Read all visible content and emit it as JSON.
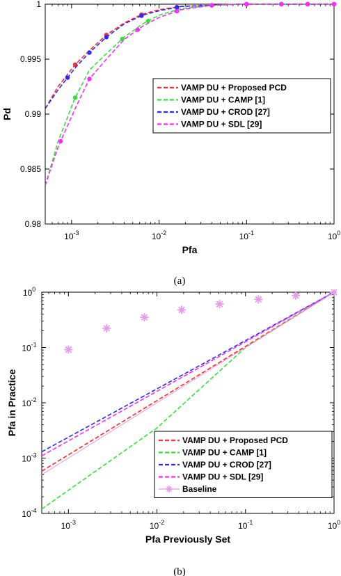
{
  "chart_data": [
    {
      "type": "line",
      "panel_caption": "(a)",
      "xlabel": "Pfa",
      "ylabel": "Pd",
      "xscale": "log",
      "xlim": [
        0.0005,
        1
      ],
      "ylim": [
        0.98,
        1
      ],
      "xticks": [
        {
          "v": 0.001,
          "base": "10",
          "exp": "-3"
        },
        {
          "v": 0.01,
          "base": "10",
          "exp": "-2"
        },
        {
          "v": 0.1,
          "base": "10",
          "exp": "-1"
        },
        {
          "v": 1,
          "base": "10",
          "exp": "0"
        }
      ],
      "yticks": [
        {
          "v": 0.98,
          "label": "0.98"
        },
        {
          "v": 0.985,
          "label": "0.985"
        },
        {
          "v": 0.99,
          "label": "0.99"
        },
        {
          "v": 0.995,
          "label": "0.995"
        },
        {
          "v": 1,
          "label": "1"
        }
      ],
      "legend_position": "right-middle",
      "series": [
        {
          "name": "VAMP DU + Proposed PCD",
          "color": "#ff2a2a",
          "x": [
            0.0005,
            0.0007,
            0.0011,
            0.0016,
            0.0025,
            0.004,
            0.0065,
            0.01,
            0.018,
            0.04,
            0.08,
            0.15,
            0.3,
            0.55,
            1
          ],
          "y": [
            0.9905,
            0.9925,
            0.9945,
            0.9958,
            0.9972,
            0.9983,
            0.9991,
            0.9995,
            0.9998,
            0.9999,
            1,
            1,
            1,
            1,
            1
          ],
          "markers_x": [
            0.0011,
            0.0025,
            0.0063,
            0.016,
            0.04,
            0.1,
            0.25,
            0.5,
            1
          ]
        },
        {
          "name": "VAMP DU + CAMP [1]",
          "color": "#2ee62e",
          "x": [
            0.0005,
            0.0007,
            0.0011,
            0.0016,
            0.0025,
            0.004,
            0.0065,
            0.01,
            0.018,
            0.04,
            0.08,
            0.15,
            0.3,
            0.55,
            1
          ],
          "y": [
            0.9835,
            0.9875,
            0.9915,
            0.994,
            0.9955,
            0.997,
            0.9982,
            0.999,
            0.9996,
            0.9999,
            1,
            1,
            1,
            1,
            1
          ],
          "markers_x": [
            0.0011,
            0.0038,
            0.0075,
            0.016,
            0.04,
            0.1,
            0.25,
            0.5,
            1
          ]
        },
        {
          "name": "VAMP DU + CROD [27]",
          "color": "#2a2aff",
          "x": [
            0.0005,
            0.0007,
            0.0011,
            0.0016,
            0.0025,
            0.004,
            0.0065,
            0.01,
            0.018,
            0.04,
            0.08,
            0.15,
            0.3,
            0.55,
            1
          ],
          "y": [
            0.9905,
            0.9922,
            0.9942,
            0.9956,
            0.997,
            0.9982,
            0.999,
            0.9994,
            0.9998,
            0.9999,
            1,
            1,
            1,
            1,
            1
          ],
          "markers_x": [
            0.0009,
            0.0016,
            0.0025,
            0.0063,
            0.016,
            0.04,
            0.1,
            0.25,
            0.5,
            1
          ]
        },
        {
          "name": "VAMP DU + SDL [29]",
          "color": "#ff2aff",
          "x": [
            0.0005,
            0.0007,
            0.0011,
            0.0016,
            0.0025,
            0.004,
            0.0065,
            0.01,
            0.018,
            0.04,
            0.08,
            0.15,
            0.3,
            0.55,
            1
          ],
          "y": [
            0.9835,
            0.987,
            0.9905,
            0.9932,
            0.995,
            0.9968,
            0.998,
            0.9988,
            0.9995,
            0.9999,
            1,
            1,
            1,
            1,
            1
          ],
          "markers_x": [
            0.00075,
            0.0016,
            0.0057,
            0.016,
            0.04,
            0.1,
            0.25,
            0.5,
            1
          ]
        }
      ]
    },
    {
      "type": "line",
      "panel_caption": "(b)",
      "xlabel": "Pfa Previously Set",
      "ylabel": "Pfa in Practice",
      "xscale": "log",
      "yscale": "log",
      "xlim": [
        0.0005,
        1
      ],
      "ylim": [
        0.0001,
        1
      ],
      "xticks": [
        {
          "v": 0.001,
          "base": "10",
          "exp": "-3"
        },
        {
          "v": 0.01,
          "base": "10",
          "exp": "-2"
        },
        {
          "v": 0.1,
          "base": "10",
          "exp": "-1"
        },
        {
          "v": 1,
          "base": "10",
          "exp": "0"
        }
      ],
      "yticks": [
        {
          "v": 0.0001,
          "base": "10",
          "exp": "-4"
        },
        {
          "v": 0.001,
          "base": "10",
          "exp": "-3"
        },
        {
          "v": 0.01,
          "base": "10",
          "exp": "-2"
        },
        {
          "v": 0.1,
          "base": "10",
          "exp": "-1"
        },
        {
          "v": 1,
          "base": "10",
          "exp": "0"
        }
      ],
      "legend_position": "bottom-right",
      "series": [
        {
          "name": "VAMP DU + Proposed PCD",
          "color": "#ff2a2a",
          "x": [
            0.0005,
            1
          ],
          "y": [
            0.00058,
            1
          ]
        },
        {
          "name": "VAMP DU + CAMP [1]",
          "color": "#2ee62e",
          "x": [
            0.0005,
            0.01,
            0.1,
            1
          ],
          "y": [
            0.00012,
            0.0035,
            0.1,
            1
          ]
        },
        {
          "name": "VAMP DU + CROD [27]",
          "color": "#2a2aff",
          "x": [
            0.0005,
            1
          ],
          "y": [
            0.0013,
            1
          ]
        },
        {
          "name": "VAMP DU + SDL [29]",
          "color": "#ff2aff",
          "x": [
            0.0005,
            1
          ],
          "y": [
            0.0011,
            1
          ]
        },
        {
          "name": "Baseline",
          "color": "#e899e8",
          "x": [
            0.0005,
            1
          ],
          "y": [
            0.0005,
            1
          ],
          "markers_x": [
            0.001,
            0.0027,
            0.0072,
            0.019,
            0.051,
            0.14,
            0.37,
            1
          ]
        }
      ]
    }
  ]
}
